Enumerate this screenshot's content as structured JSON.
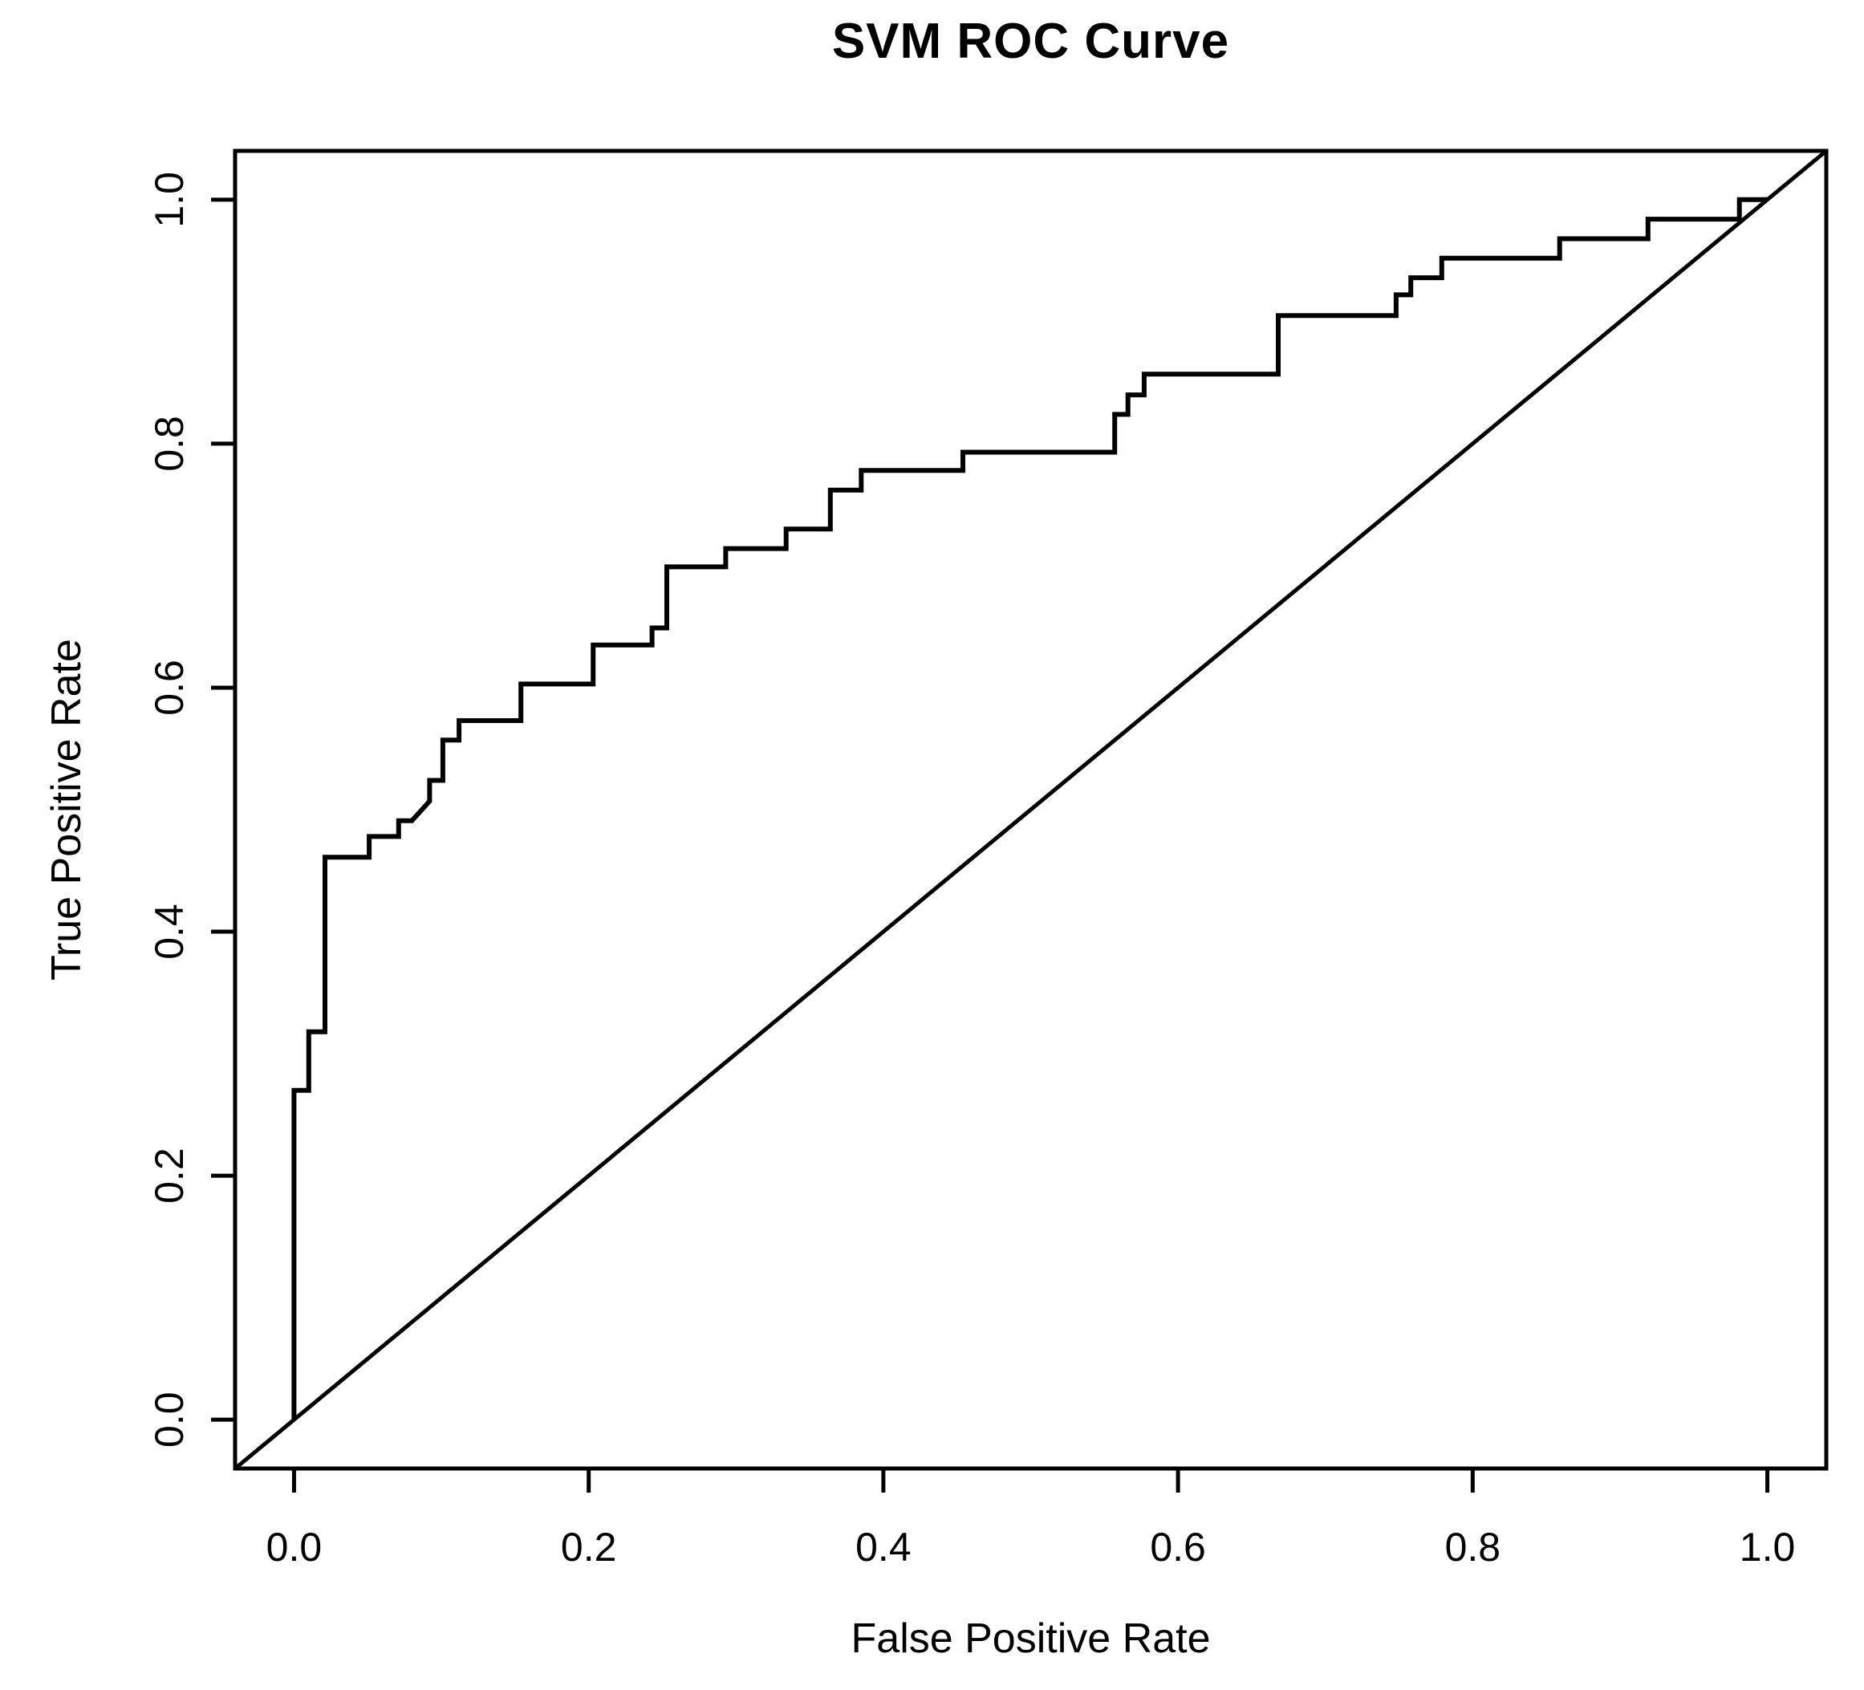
{
  "figure": {
    "background_color": "#ffffff",
    "ink_color": "#000000"
  },
  "chart_data": {
    "type": "line",
    "title": "SVM ROC Curve",
    "xlabel": "False Positive Rate",
    "ylabel": "True Positive Rate",
    "xlim": [
      0,
      1
    ],
    "ylim": [
      0,
      1
    ],
    "grid": false,
    "legend": null,
    "x_ticks": {
      "values": [
        0.0,
        0.2,
        0.4,
        0.6,
        0.8,
        1.0
      ],
      "labels": [
        "0.0",
        "0.2",
        "0.4",
        "0.6",
        "0.8",
        "1.0"
      ]
    },
    "y_ticks": {
      "values": [
        0.0,
        0.2,
        0.4,
        0.6,
        0.8,
        1.0
      ],
      "labels": [
        "0.0",
        "0.2",
        "0.4",
        "0.6",
        "0.8",
        "1.0"
      ]
    },
    "series": [
      {
        "name": "SVM ROC curve",
        "style": "path",
        "color": "#000000",
        "points": [
          [
            0.0,
            0.0
          ],
          [
            0.0,
            0.27
          ],
          [
            0.01,
            0.27
          ],
          [
            0.01,
            0.318
          ],
          [
            0.021,
            0.318
          ],
          [
            0.021,
            0.461
          ],
          [
            0.051,
            0.461
          ],
          [
            0.051,
            0.478
          ],
          [
            0.071,
            0.478
          ],
          [
            0.071,
            0.491
          ],
          [
            0.08,
            0.491
          ],
          [
            0.092,
            0.507
          ],
          [
            0.092,
            0.524
          ],
          [
            0.101,
            0.524
          ],
          [
            0.101,
            0.557
          ],
          [
            0.112,
            0.557
          ],
          [
            0.112,
            0.573
          ],
          [
            0.154,
            0.573
          ],
          [
            0.154,
            0.603
          ],
          [
            0.203,
            0.603
          ],
          [
            0.203,
            0.635
          ],
          [
            0.243,
            0.635
          ],
          [
            0.243,
            0.649
          ],
          [
            0.253,
            0.649
          ],
          [
            0.253,
            0.699
          ],
          [
            0.293,
            0.699
          ],
          [
            0.293,
            0.714
          ],
          [
            0.334,
            0.714
          ],
          [
            0.334,
            0.73
          ],
          [
            0.364,
            0.73
          ],
          [
            0.364,
            0.762
          ],
          [
            0.385,
            0.762
          ],
          [
            0.385,
            0.778
          ],
          [
            0.454,
            0.778
          ],
          [
            0.454,
            0.793
          ],
          [
            0.557,
            0.793
          ],
          [
            0.557,
            0.824
          ],
          [
            0.566,
            0.824
          ],
          [
            0.566,
            0.84
          ],
          [
            0.577,
            0.84
          ],
          [
            0.577,
            0.857
          ],
          [
            0.668,
            0.857
          ],
          [
            0.668,
            0.905
          ],
          [
            0.748,
            0.905
          ],
          [
            0.748,
            0.922
          ],
          [
            0.758,
            0.922
          ],
          [
            0.758,
            0.936
          ],
          [
            0.779,
            0.936
          ],
          [
            0.779,
            0.952
          ],
          [
            0.859,
            0.952
          ],
          [
            0.859,
            0.968
          ],
          [
            0.919,
            0.968
          ],
          [
            0.919,
            0.984
          ],
          [
            0.981,
            0.984
          ],
          [
            0.981,
            1.0
          ],
          [
            1.0,
            1.0
          ]
        ]
      },
      {
        "name": "chance diagonal",
        "style": "abline",
        "color": "#000000",
        "points": [
          [
            0,
            0
          ],
          [
            1,
            1
          ]
        ]
      }
    ]
  }
}
